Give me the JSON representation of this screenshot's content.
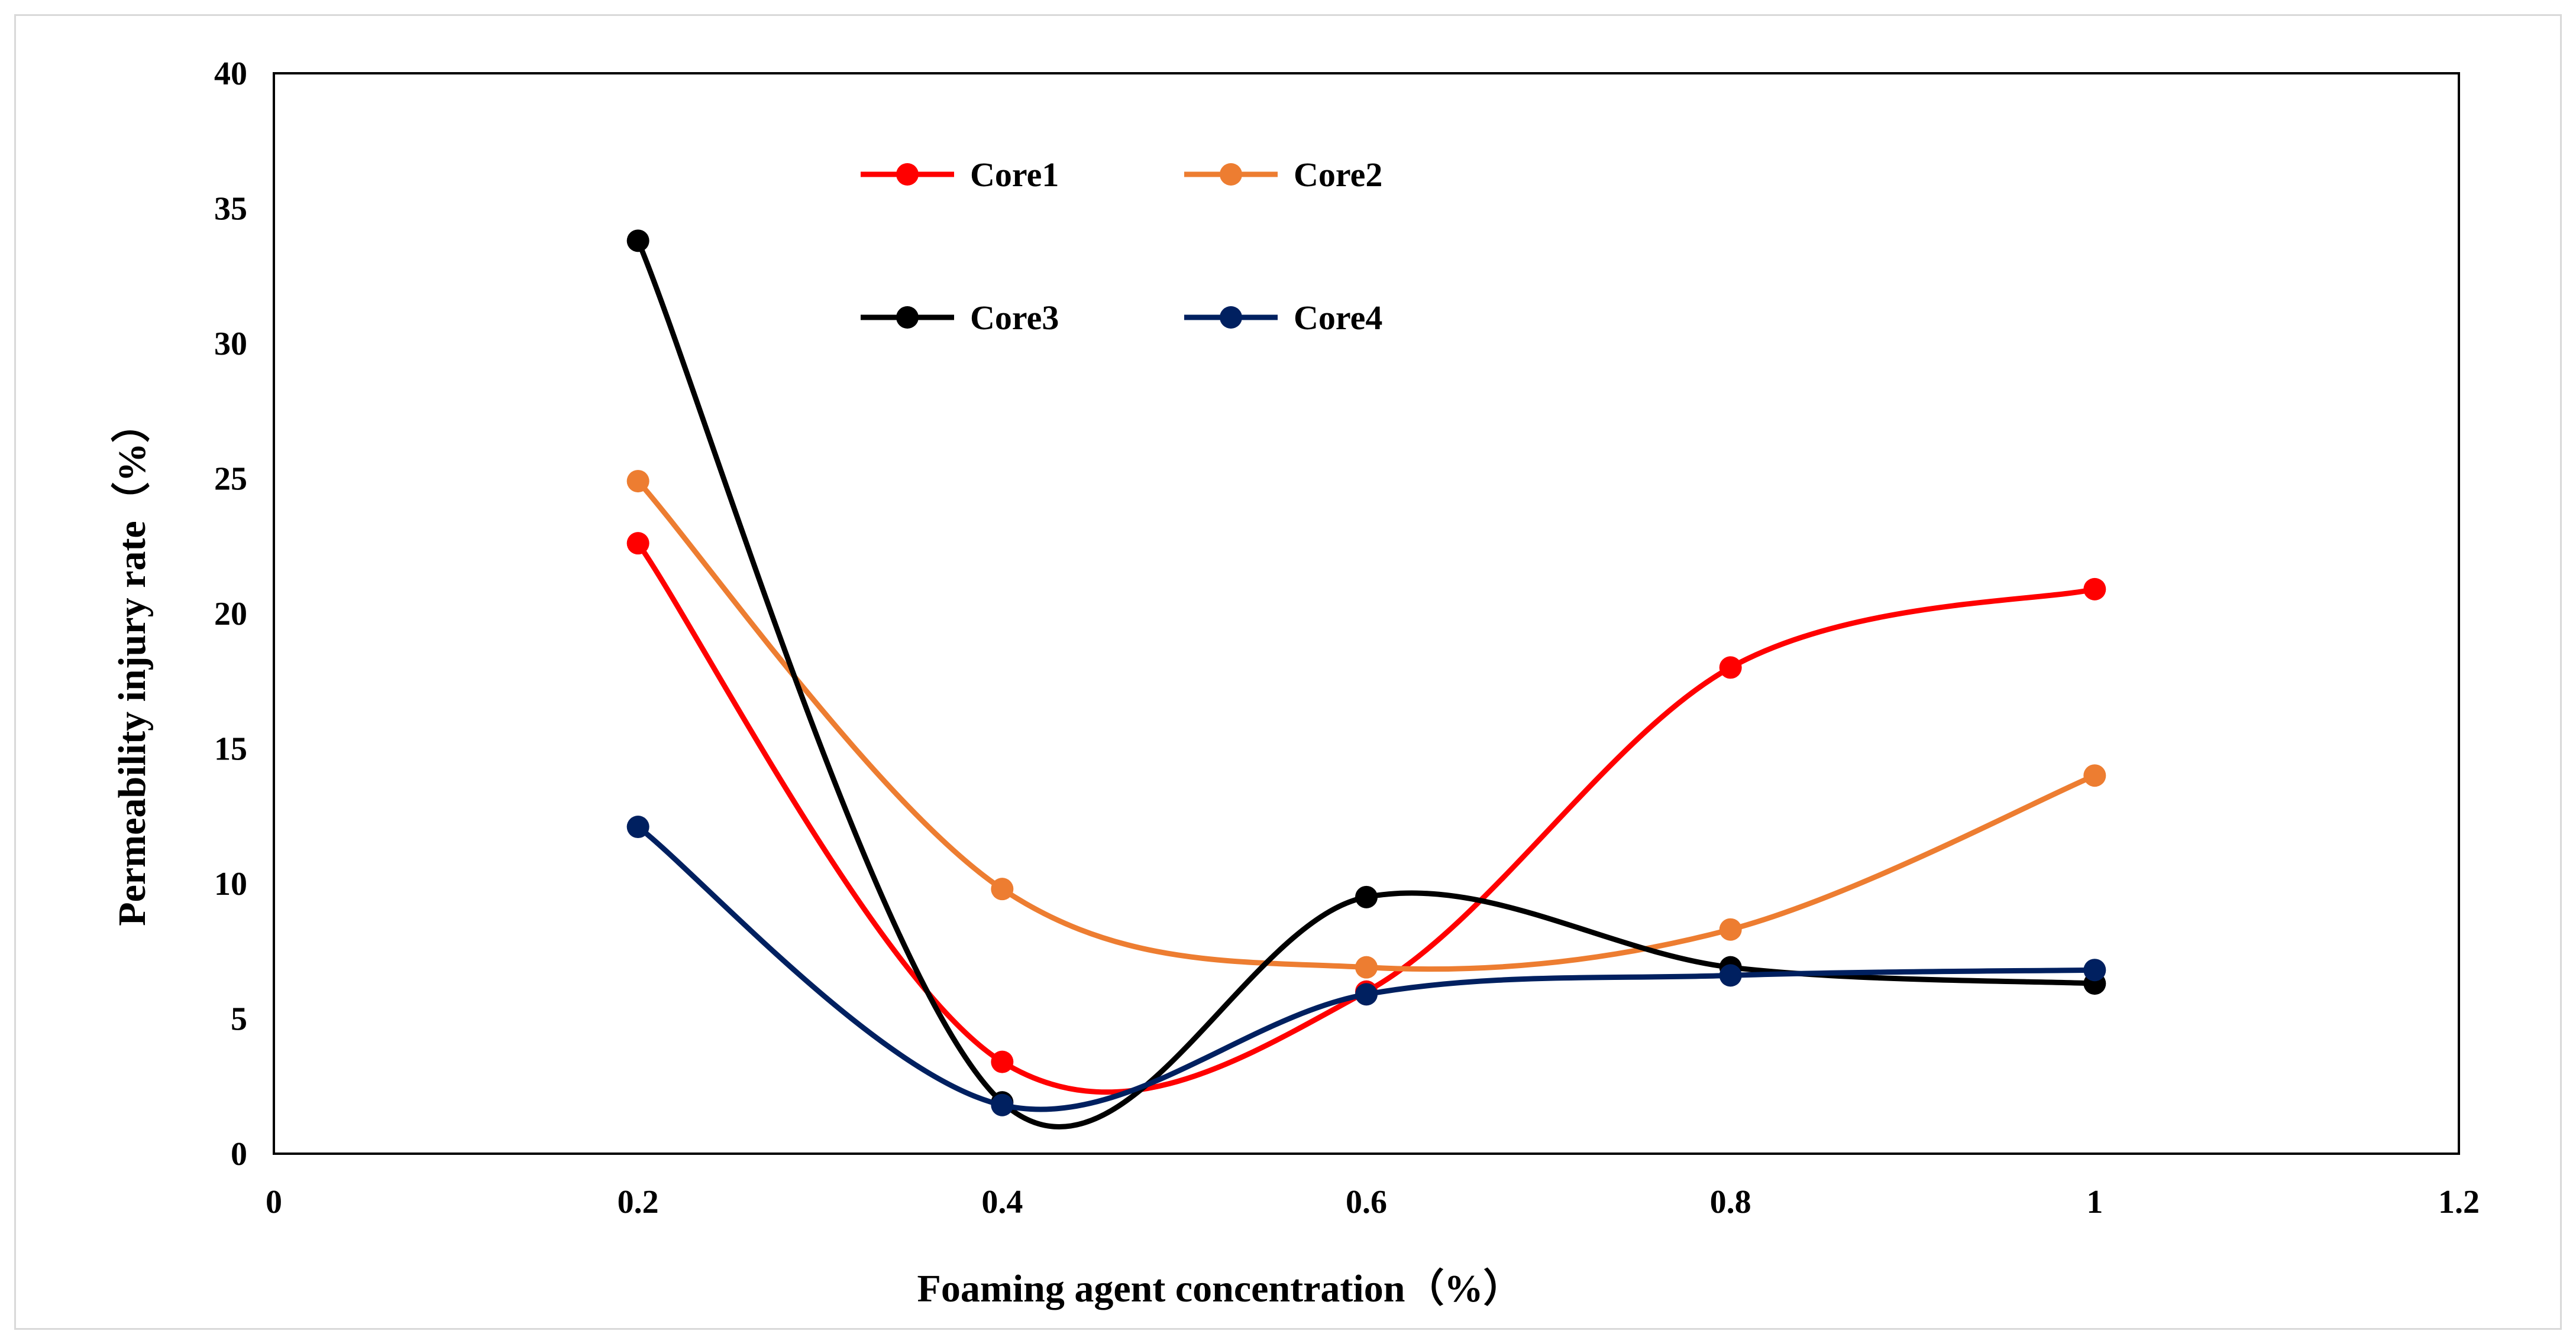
{
  "chart_data": {
    "type": "line",
    "title": "",
    "xlabel": "Foaming agent concentration（%）",
    "ylabel": "Permeability injury rate（%）",
    "xlim": [
      0,
      1.2
    ],
    "ylim": [
      0,
      40
    ],
    "xticks": [
      0,
      0.2,
      0.4,
      0.6,
      0.8,
      1,
      1.2
    ],
    "yticks": [
      0,
      5,
      10,
      15,
      20,
      25,
      30,
      35,
      40
    ],
    "xtick_labels": [
      "0",
      "0.2",
      "0.4",
      "0.6",
      "0.8",
      "1",
      "1.2"
    ],
    "ytick_labels": [
      "0",
      "5",
      "10",
      "15",
      "20",
      "25",
      "30",
      "35",
      "40"
    ],
    "grid": false,
    "smooth": true,
    "legend_position": "top-left",
    "x": [
      0.2,
      0.4,
      0.6,
      0.8,
      1.0
    ],
    "series": [
      {
        "name": "Core1",
        "color": "#ff0000",
        "values": [
          22.6,
          3.4,
          6.0,
          18.0,
          20.9
        ]
      },
      {
        "name": "Core2",
        "color": "#ed7d31",
        "values": [
          24.9,
          9.8,
          6.9,
          8.3,
          14.0
        ]
      },
      {
        "name": "Core3",
        "color": "#000000",
        "values": [
          33.8,
          1.9,
          9.5,
          6.9,
          6.3
        ]
      },
      {
        "name": "Core4",
        "color": "#002060",
        "values": [
          12.1,
          1.8,
          5.9,
          6.6,
          6.8
        ]
      }
    ]
  }
}
